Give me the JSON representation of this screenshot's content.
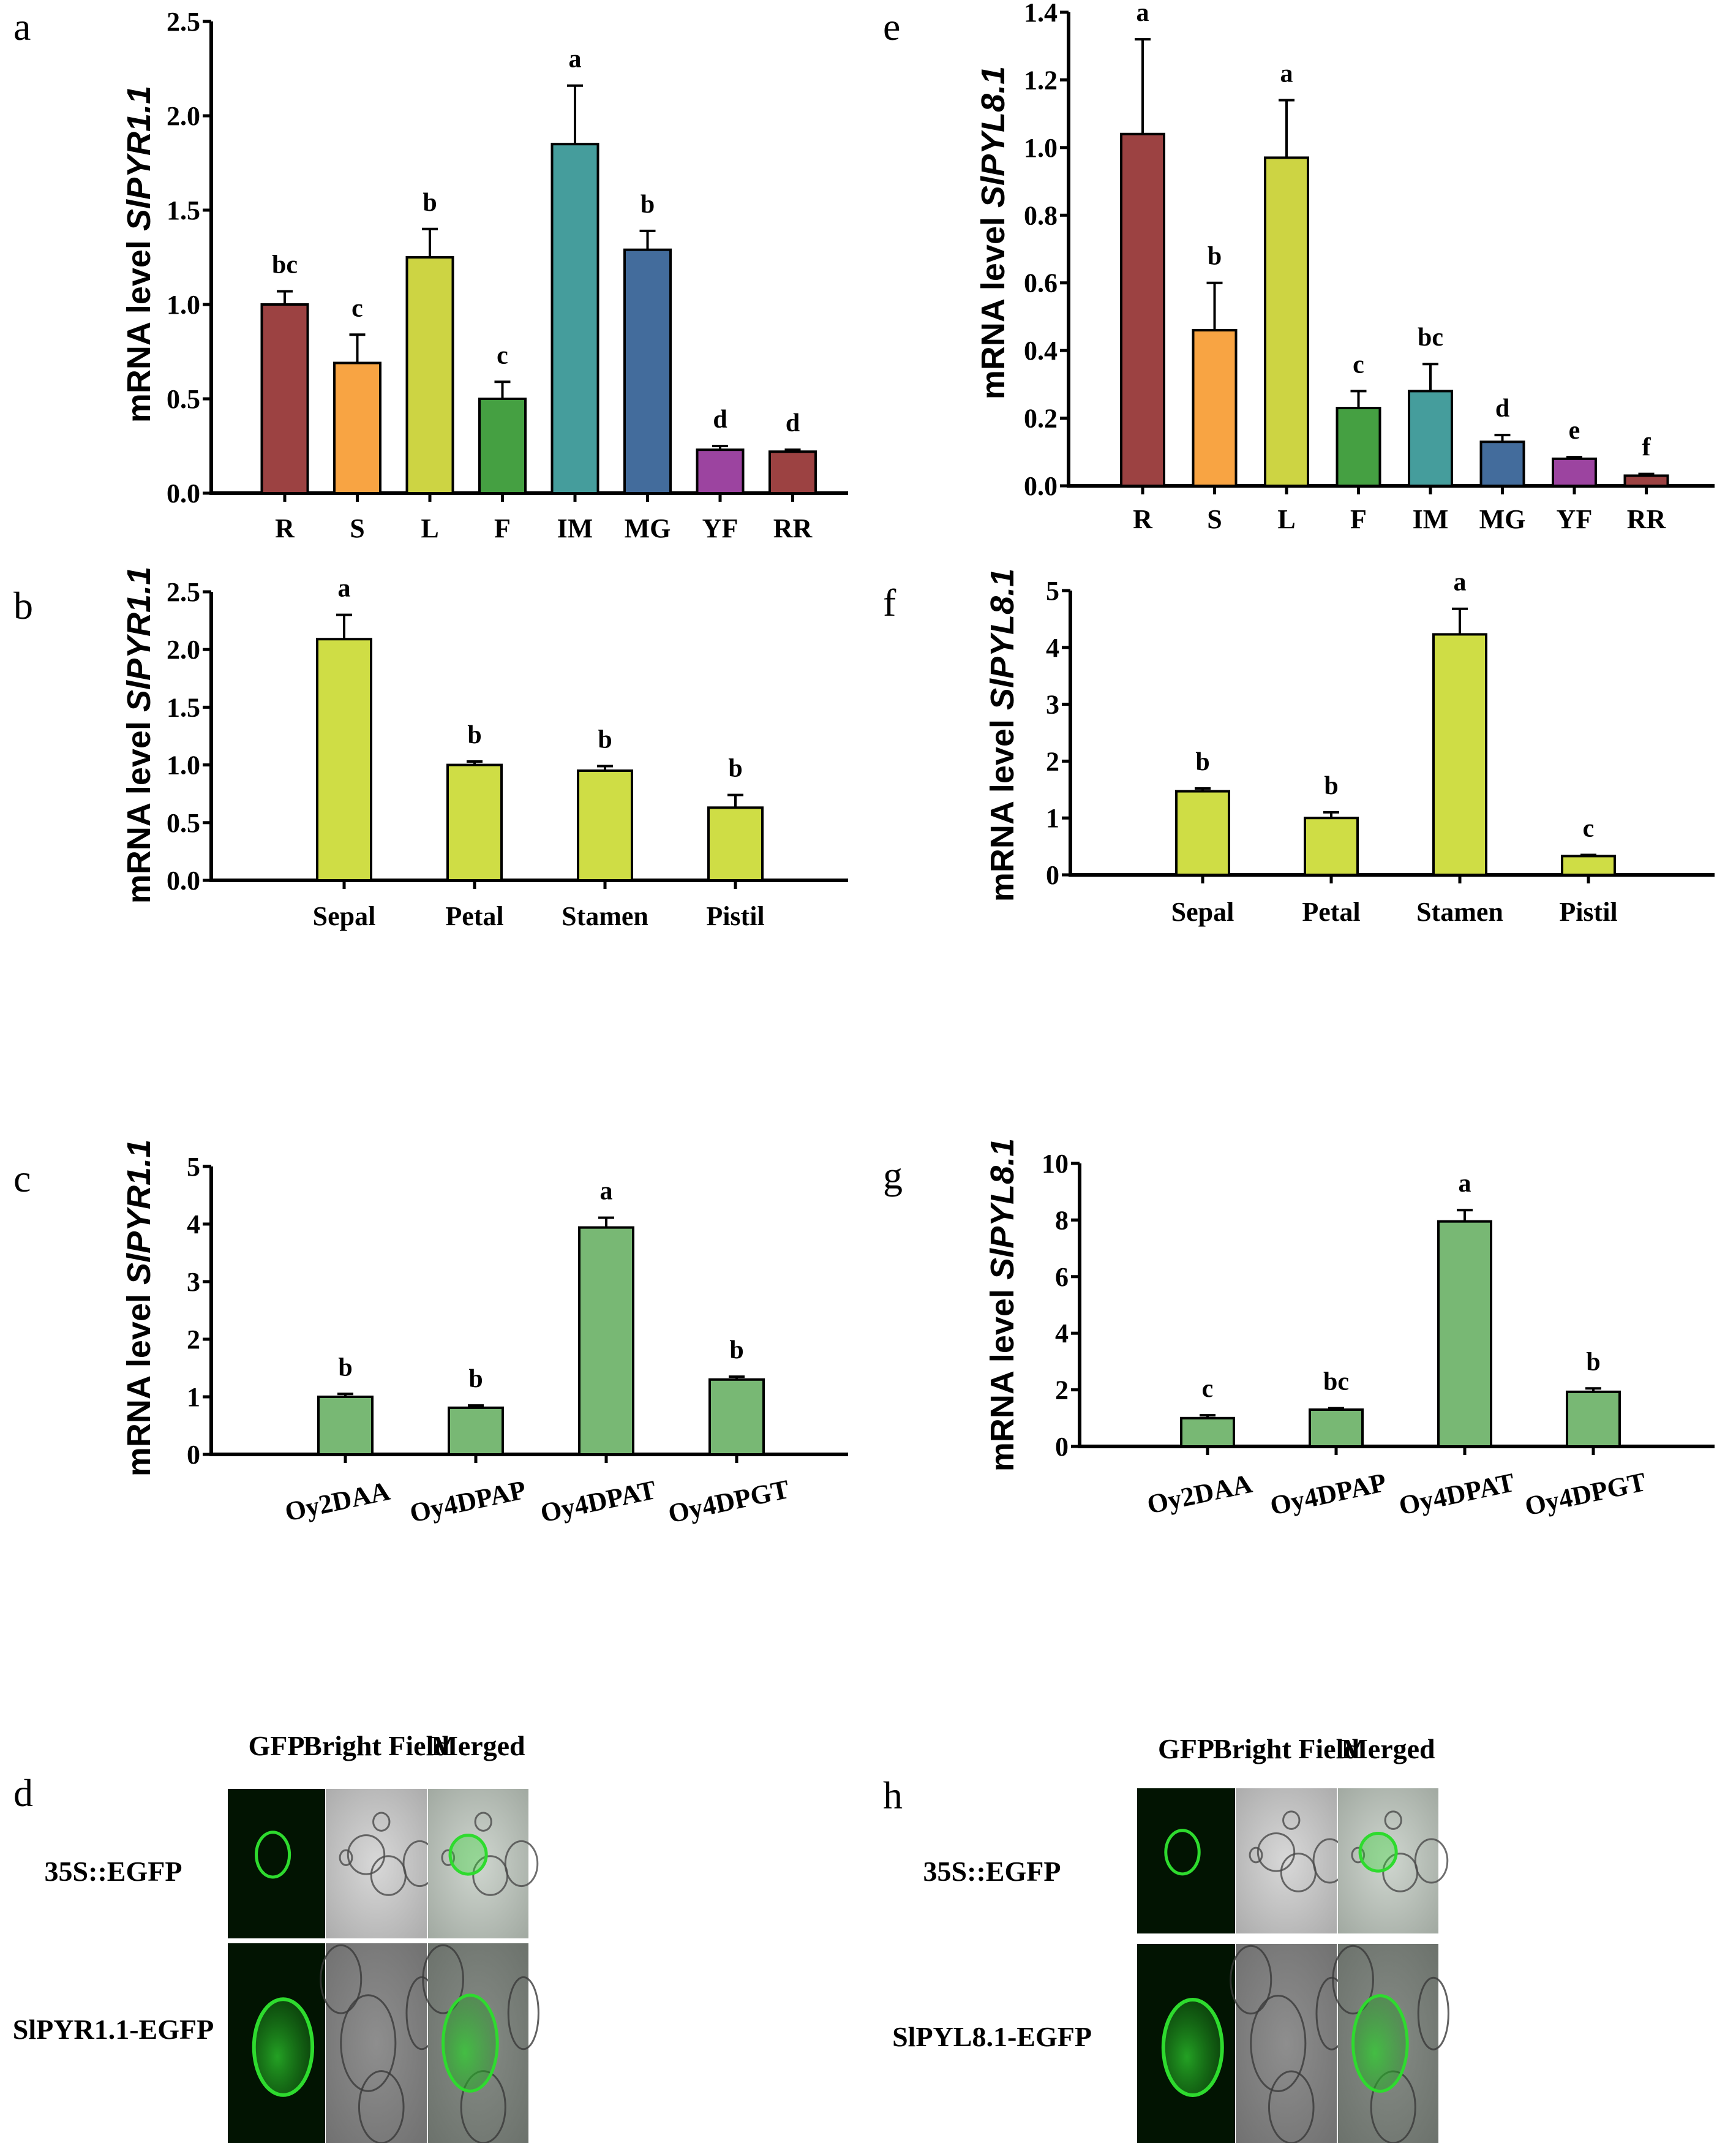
{
  "figure": {
    "panels": [
      "a",
      "b",
      "c",
      "d",
      "e",
      "f",
      "g",
      "h"
    ]
  },
  "chart_data": [
    {
      "id": "a",
      "panel_letter": "a",
      "type": "bar",
      "title": "",
      "xlabel": "",
      "ylabel_prefix": "mRNA level ",
      "ylabel_gene": "SlPYR1.1",
      "ylim": [
        0,
        2.5
      ],
      "yticks": [
        0,
        0.5,
        1.0,
        1.5,
        2.0,
        2.5
      ],
      "ytick_labels": [
        "0.0",
        "0.5",
        "1.0",
        "1.5",
        "2.0",
        "2.5"
      ],
      "categories": [
        "R",
        "S",
        "L",
        "F",
        "IM",
        "MG",
        "YF",
        "RR"
      ],
      "values": [
        1.0,
        0.69,
        1.25,
        0.5,
        1.85,
        1.29,
        0.23,
        0.22
      ],
      "errors": [
        0.07,
        0.15,
        0.15,
        0.09,
        0.31,
        0.1,
        0.02,
        0.01
      ],
      "significance": [
        "bc",
        "c",
        "b",
        "c",
        "a",
        "b",
        "d",
        "d"
      ],
      "colors": [
        "#9C4242",
        "#F8A443",
        "#CDD443",
        "#45A042",
        "#459D9C",
        "#436C9C",
        "#9C44A0",
        "#9C4242"
      ],
      "rotated_xlabels": false,
      "grid": false
    },
    {
      "id": "b",
      "panel_letter": "b",
      "type": "bar",
      "title": "",
      "xlabel": "",
      "ylabel_prefix": "mRNA level ",
      "ylabel_gene": "SlPYR1.1",
      "ylim": [
        0,
        2.5
      ],
      "yticks": [
        0,
        0.5,
        1.0,
        1.5,
        2.0,
        2.5
      ],
      "ytick_labels": [
        "0.0",
        "0.5",
        "1.0",
        "1.5",
        "2.0",
        "2.5"
      ],
      "categories": [
        "Sepal",
        "Petal",
        "Stamen",
        "Pistil"
      ],
      "values": [
        2.09,
        1.0,
        0.95,
        0.63
      ],
      "errors": [
        0.21,
        0.03,
        0.04,
        0.11
      ],
      "significance": [
        "a",
        "b",
        "b",
        "b"
      ],
      "colors": [
        "#CFDD45",
        "#CFDD45",
        "#CFDD45",
        "#CFDD45"
      ],
      "rotated_xlabels": false,
      "grid": false
    },
    {
      "id": "c",
      "panel_letter": "c",
      "type": "bar",
      "title": "",
      "xlabel": "",
      "ylabel_prefix": "mRNA level ",
      "ylabel_gene": "SlPYR1.1",
      "ylim": [
        0,
        5
      ],
      "yticks": [
        0,
        1,
        2,
        3,
        4,
        5
      ],
      "ytick_labels": [
        "0",
        "1",
        "2",
        "3",
        "4",
        "5"
      ],
      "categories": [
        "Oy2DAA",
        "Oy4DPAP",
        "Oy4DPAT",
        "Oy4DPGT"
      ],
      "values": [
        1.0,
        0.81,
        3.94,
        1.3
      ],
      "errors": [
        0.05,
        0.04,
        0.17,
        0.05
      ],
      "significance": [
        "b",
        "b",
        "a",
        "b"
      ],
      "colors": [
        "#78B874",
        "#78B874",
        "#78B874",
        "#78B874"
      ],
      "rotated_xlabels": true,
      "grid": false
    },
    {
      "id": "e",
      "panel_letter": "e",
      "type": "bar",
      "title": "",
      "xlabel": "",
      "ylabel_prefix": "mRNA level ",
      "ylabel_gene": "SlPYL8.1",
      "ylim": [
        0,
        1.4
      ],
      "yticks": [
        0,
        0.2,
        0.4,
        0.6,
        0.8,
        1.0,
        1.2,
        1.4
      ],
      "ytick_labels": [
        "0.0",
        "0.2",
        "0.4",
        "0.6",
        "0.8",
        "1.0",
        "1.2",
        "1.4"
      ],
      "categories": [
        "R",
        "S",
        "L",
        "F",
        "IM",
        "MG",
        "YF",
        "RR"
      ],
      "values": [
        1.04,
        0.46,
        0.97,
        0.23,
        0.28,
        0.13,
        0.08,
        0.03
      ],
      "errors": [
        0.28,
        0.14,
        0.17,
        0.05,
        0.08,
        0.02,
        0.005,
        0.005
      ],
      "significance": [
        "a",
        "b",
        "a",
        "c",
        "bc",
        "d",
        "e",
        "f"
      ],
      "colors": [
        "#9C4242",
        "#F8A443",
        "#CDD443",
        "#45A042",
        "#459D9C",
        "#436C9C",
        "#9C44A0",
        "#9C4242"
      ],
      "rotated_xlabels": false,
      "grid": false
    },
    {
      "id": "f",
      "panel_letter": "f",
      "type": "bar",
      "title": "",
      "xlabel": "",
      "ylabel_prefix": "mRNA level ",
      "ylabel_gene": "SlPYL8.1",
      "ylim": [
        0,
        5
      ],
      "yticks": [
        0,
        1,
        2,
        3,
        4,
        5
      ],
      "ytick_labels": [
        "0",
        "1",
        "2",
        "3",
        "4",
        "5"
      ],
      "categories": [
        "Sepal",
        "Petal",
        "Stamen",
        "Pistil"
      ],
      "values": [
        1.47,
        1.0,
        4.23,
        0.33
      ],
      "errors": [
        0.05,
        0.1,
        0.45,
        0.02
      ],
      "significance": [
        "b",
        "b",
        "a",
        "c"
      ],
      "colors": [
        "#CFDD45",
        "#CFDD45",
        "#CFDD45",
        "#CFDD45"
      ],
      "rotated_xlabels": false,
      "grid": false
    },
    {
      "id": "g",
      "panel_letter": "g",
      "type": "bar",
      "title": "",
      "xlabel": "",
      "ylabel_prefix": "mRNA level ",
      "ylabel_gene": "SlPYL8.1",
      "ylim": [
        0,
        10
      ],
      "yticks": [
        0,
        2,
        4,
        6,
        8,
        10
      ],
      "ytick_labels": [
        "0",
        "2",
        "4",
        "6",
        "8",
        "10"
      ],
      "categories": [
        "Oy2DAA",
        "Oy4DPAP",
        "Oy4DPAT",
        "Oy4DPGT"
      ],
      "values": [
        1.0,
        1.3,
        7.95,
        1.93
      ],
      "errors": [
        0.1,
        0.05,
        0.4,
        0.12
      ],
      "significance": [
        "c",
        "bc",
        "a",
        "b"
      ],
      "colors": [
        "#78B874",
        "#78B874",
        "#78B874",
        "#78B874"
      ],
      "rotated_xlabels": true,
      "grid": false
    }
  ],
  "microscopy": [
    {
      "id": "d",
      "panel_letter": "d",
      "column_headers": [
        "GFP",
        "Bright Field",
        "Merged"
      ],
      "rows": [
        {
          "label": "35S::EGFP"
        },
        {
          "label": "SlPYR1.1-EGFP"
        }
      ]
    },
    {
      "id": "h",
      "panel_letter": "h",
      "column_headers": [
        "GFP",
        "Bright Field",
        "Merged"
      ],
      "rows": [
        {
          "label": "35S::EGFP"
        },
        {
          "label": "SlPYL8.1-EGFP"
        }
      ]
    }
  ]
}
